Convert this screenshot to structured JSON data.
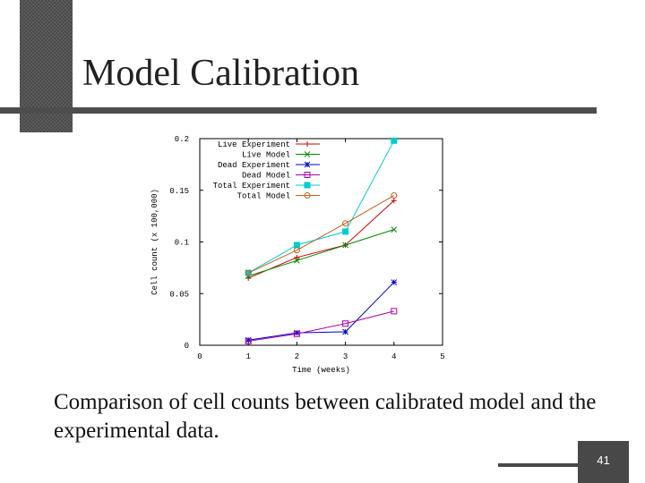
{
  "slide": {
    "title": "Model Calibration",
    "caption": "Comparison of cell counts between calibrated model and the experimental data.",
    "page_number": "41"
  },
  "chart_data": {
    "type": "line",
    "xlabel": "Time (weeks)",
    "ylabel": "Cell count (x 100,000)",
    "xlim": [
      0,
      5
    ],
    "ylim": [
      0,
      0.2
    ],
    "xticks": [
      "0",
      "1",
      "2",
      "3",
      "4",
      "5"
    ],
    "yticks": [
      "0",
      "0.05",
      "0.1",
      "0.15",
      "0.2"
    ],
    "legend_position": "top-left",
    "series": [
      {
        "name": "Live Experiment",
        "color": "#cc0000",
        "marker": "plus",
        "x": [
          1,
          2,
          3,
          4
        ],
        "y": [
          0.065,
          0.085,
          0.097,
          0.14
        ]
      },
      {
        "name": "Live Model",
        "color": "#008800",
        "marker": "x",
        "x": [
          1,
          2,
          3,
          4
        ],
        "y": [
          0.067,
          0.082,
          0.097,
          0.112
        ]
      },
      {
        "name": "Dead Experiment",
        "color": "#0000cc",
        "marker": "star",
        "x": [
          1,
          2,
          3,
          4
        ],
        "y": [
          0.005,
          0.012,
          0.013,
          0.061
        ]
      },
      {
        "name": "Dead Model",
        "color": "#aa00aa",
        "marker": "square-open",
        "x": [
          1,
          2,
          3,
          4
        ],
        "y": [
          0.004,
          0.011,
          0.021,
          0.033
        ]
      },
      {
        "name": "Total Experiment",
        "color": "#00cccc",
        "marker": "square-filled",
        "x": [
          1,
          2,
          3,
          4
        ],
        "y": [
          0.07,
          0.097,
          0.11,
          0.198
        ]
      },
      {
        "name": "Total Model",
        "color": "#c06020",
        "marker": "circle-open",
        "x": [
          1,
          2,
          3,
          4
        ],
        "y": [
          0.07,
          0.092,
          0.118,
          0.145
        ]
      }
    ]
  }
}
